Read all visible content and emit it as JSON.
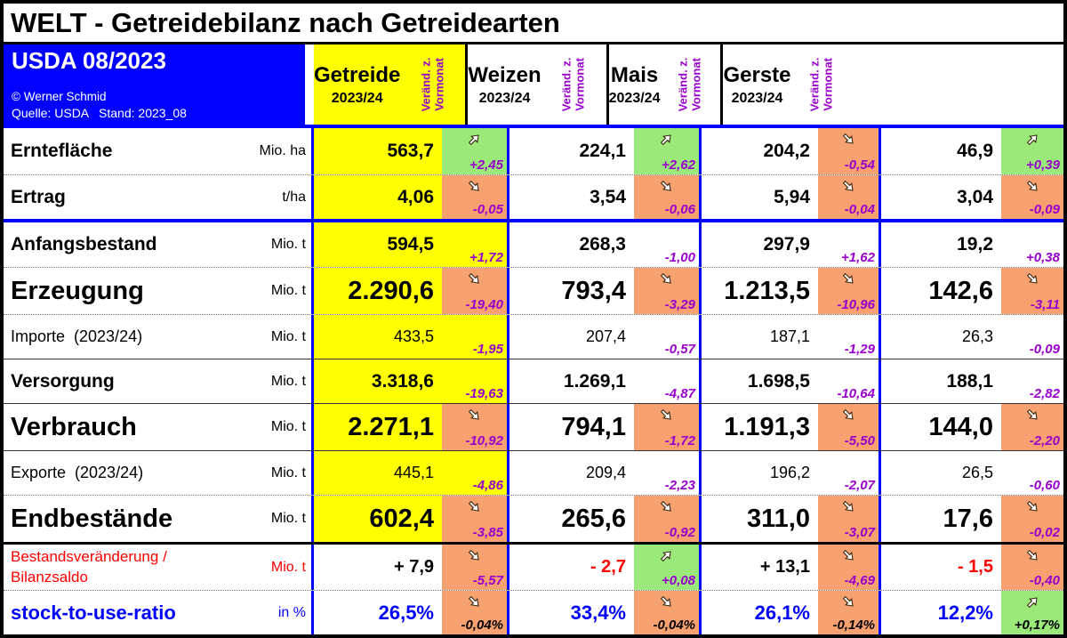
{
  "title": "WELT - Getreidebilanz nach Getreidearten",
  "info_box": {
    "title": "USDA 08/2023",
    "copyright": "© Werner Schmid",
    "source": "Quelle: USDA   Stand: 2023_08"
  },
  "change_header": {
    "line1": "Veränd. z.",
    "line2": "Vormonat"
  },
  "columns": [
    {
      "name": "Getreide",
      "season": "2023/24"
    },
    {
      "name": "Weizen",
      "season": "2023/24"
    },
    {
      "name": "Mais",
      "season": "2023/24"
    },
    {
      "name": "Gerste",
      "season": "2023/24"
    }
  ],
  "colors": {
    "accent_blue": "#0000FF",
    "yellow": "#FFFF00",
    "green": "#9BE97B",
    "orange": "#F7A070",
    "purple": "#9900CC",
    "red": "#FF0000",
    "gray_row": "#D5D5D5"
  },
  "rows": [
    {
      "label": "Erntefläche",
      "unit": "Mio. ha",
      "style": "medium",
      "cells": [
        {
          "v": "563,7",
          "c": "+2,45",
          "bg": "green",
          "dir": "up"
        },
        {
          "v": "224,1",
          "c": "+2,62",
          "bg": "green",
          "dir": "up"
        },
        {
          "v": "204,2",
          "c": "-0,54",
          "bg": "orange",
          "dir": "down"
        },
        {
          "v": "46,9",
          "c": "+0,39",
          "bg": "green",
          "dir": "up"
        }
      ]
    },
    {
      "label": "Ertrag",
      "unit": "t/ha",
      "style": "medium",
      "cells": [
        {
          "v": "4,06",
          "c": "-0,05",
          "bg": "orange",
          "dir": "down"
        },
        {
          "v": "3,54",
          "c": "-0,06",
          "bg": "orange",
          "dir": "down"
        },
        {
          "v": "5,94",
          "c": "-0,04",
          "bg": "orange",
          "dir": "down"
        },
        {
          "v": "3,04",
          "c": "-0,09",
          "bg": "orange",
          "dir": "down"
        }
      ]
    },
    {
      "label": "Anfangsbestand",
      "unit": "Mio. t",
      "style": "medium",
      "cells": [
        {
          "v": "594,5",
          "c": "+1,72"
        },
        {
          "v": "268,3",
          "c": "-1,00"
        },
        {
          "v": "297,9",
          "c": "+1,62"
        },
        {
          "v": "19,2",
          "c": "+0,38"
        }
      ]
    },
    {
      "label": "Erzeugung",
      "unit": "Mio. t",
      "style": "big",
      "cells": [
        {
          "v": "2.290,6",
          "c": "-19,40",
          "bg": "orange",
          "dir": "down"
        },
        {
          "v": "793,4",
          "c": "-3,29",
          "bg": "orange",
          "dir": "down"
        },
        {
          "v": "1.213,5",
          "c": "-10,96",
          "bg": "orange",
          "dir": "down"
        },
        {
          "v": "142,6",
          "c": "-3,11",
          "bg": "orange",
          "dir": "down"
        }
      ]
    },
    {
      "label": "Importe  (2023/24)",
      "unit": "Mio. t",
      "style": "small",
      "cells": [
        {
          "v": "433,5",
          "c": "-1,95"
        },
        {
          "v": "207,4",
          "c": "-0,57"
        },
        {
          "v": "187,1",
          "c": "-1,29"
        },
        {
          "v": "26,3",
          "c": "-0,09"
        }
      ]
    },
    {
      "label": "Versorgung",
      "unit": "Mio. t",
      "style": "medium",
      "cells": [
        {
          "v": "3.318,6",
          "c": "-19,63"
        },
        {
          "v": "1.269,1",
          "c": "-4,87"
        },
        {
          "v": "1.698,5",
          "c": "-10,64"
        },
        {
          "v": "188,1",
          "c": "-2,82"
        }
      ]
    },
    {
      "label": "Verbrauch",
      "unit": "Mio. t",
      "style": "big",
      "cells": [
        {
          "v": "2.271,1",
          "c": "-10,92",
          "bg": "orange",
          "dir": "down"
        },
        {
          "v": "794,1",
          "c": "-1,72",
          "bg": "orange",
          "dir": "down"
        },
        {
          "v": "1.191,3",
          "c": "-5,50",
          "bg": "orange",
          "dir": "down"
        },
        {
          "v": "144,0",
          "c": "-2,20",
          "bg": "orange",
          "dir": "down"
        }
      ]
    },
    {
      "label": "Exporte  (2023/24)",
      "unit": "Mio. t",
      "style": "small",
      "cells": [
        {
          "v": "445,1",
          "c": "-4,86"
        },
        {
          "v": "209,4",
          "c": "-2,23"
        },
        {
          "v": "196,2",
          "c": "-2,07"
        },
        {
          "v": "26,5",
          "c": "-0,60"
        }
      ]
    },
    {
      "label": "Endbestände",
      "unit": "Mio. t",
      "style": "big",
      "cells": [
        {
          "v": "602,4",
          "c": "-3,85",
          "bg": "orange",
          "dir": "down"
        },
        {
          "v": "265,6",
          "c": "-0,92",
          "bg": "orange",
          "dir": "down"
        },
        {
          "v": "311,0",
          "c": "-3,07",
          "bg": "orange",
          "dir": "down"
        },
        {
          "v": "17,6",
          "c": "-0,02",
          "bg": "orange",
          "dir": "down"
        }
      ]
    },
    {
      "label": "Bestandsveränderung /",
      "label2": "Bilanzsaldo",
      "unit": "Mio. t",
      "style": "balance",
      "cells": [
        {
          "v": "+ 7,9",
          "c": "-5,57",
          "bg": "orange",
          "dir": "down"
        },
        {
          "v": "- 2,7",
          "vcolor": "red",
          "c": "+0,08",
          "bg": "green",
          "dir": "up"
        },
        {
          "v": "+ 13,1",
          "c": "-4,69",
          "bg": "orange",
          "dir": "down"
        },
        {
          "v": "- 1,5",
          "vcolor": "red",
          "c": "-0,40",
          "bg": "orange",
          "dir": "down"
        }
      ]
    },
    {
      "label": "stock-to-use-ratio",
      "unit": "in %",
      "style": "ratio",
      "cells": [
        {
          "v": "26,5%",
          "c": "-0,04%",
          "bg": "orange",
          "dir": "down",
          "ccolor": "black"
        },
        {
          "v": "33,4%",
          "c": "-0,04%",
          "bg": "orange",
          "dir": "down",
          "ccolor": "black"
        },
        {
          "v": "26,1%",
          "c": "-0,14%",
          "bg": "orange",
          "dir": "down",
          "ccolor": "black"
        },
        {
          "v": "12,2%",
          "c": "+0,17%",
          "bg": "green",
          "dir": "up",
          "ccolor": "black"
        }
      ]
    }
  ]
}
